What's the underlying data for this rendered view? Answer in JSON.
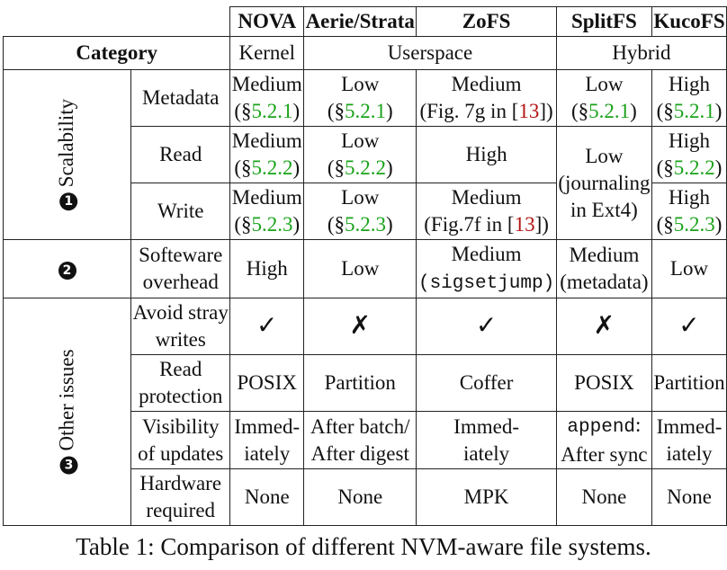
{
  "columns": {
    "nova": "NOVA",
    "aerie": "Aerie/Strata",
    "zofs": "ZoFS",
    "splitfs": "SplitFS",
    "kucofs": "KucoFS"
  },
  "category": {
    "label": "Category",
    "kernel": "Kernel",
    "userspace": "Userspace",
    "hybrid": "Hybrid"
  },
  "groups": {
    "scalability": {
      "num": "1",
      "label": "Scalability"
    },
    "overhead": {
      "num": "2"
    },
    "other": {
      "num": "3",
      "label": "Other issues"
    }
  },
  "rows": {
    "metadata": {
      "label": "Metadata",
      "nova": {
        "text": "Medium",
        "pre": "(§",
        "ref": "5.2.1",
        "post": ")"
      },
      "aerie": {
        "text": "Low",
        "pre": "(§",
        "ref": "5.2.1",
        "post": ")"
      },
      "zofs": {
        "text": "Medium",
        "pre": "(Fig. 7g in [",
        "ref": "13",
        "post": "])"
      },
      "splitfs": {
        "text": "Low",
        "pre": "(§",
        "ref": "5.2.1",
        "post": ")"
      },
      "kucofs": {
        "text": "High",
        "pre": "(§",
        "ref": "5.2.1",
        "post": ")"
      }
    },
    "read": {
      "label": "Read",
      "nova": {
        "text": "Medium",
        "pre": "(§",
        "ref": "5.2.2",
        "post": ")"
      },
      "aerie": {
        "text": "Low",
        "pre": "(§",
        "ref": "5.2.2",
        "post": ")"
      },
      "zofs": {
        "text": "High"
      },
      "splitfs": {
        "l1": "Low",
        "l2": "(journaling",
        "l3": "in Ext4)"
      },
      "kucofs": {
        "text": "High",
        "pre": "(§",
        "ref": "5.2.2",
        "post": ")"
      }
    },
    "write": {
      "label": "Write",
      "nova": {
        "text": "Medium",
        "pre": "(§",
        "ref": "5.2.3",
        "post": ")"
      },
      "aerie": {
        "text": "Low",
        "pre": "(§",
        "ref": "5.2.3",
        "post": ")"
      },
      "zofs": {
        "text": "Medium",
        "pre": "(Fig.7f in [",
        "ref": "13",
        "post": "])"
      },
      "kucofs": {
        "text": "High",
        "pre": "(§",
        "ref": "5.2.3",
        "post": ")"
      }
    },
    "overhead": {
      "label1": "Softeware",
      "label2": "overhead",
      "nova": "High",
      "aerie": "Low",
      "zofs1": "Medium",
      "zofs2": "(sigsetjump)",
      "splitfs1": "Medium",
      "splitfs2": "(metadata)",
      "kucofs": "Low"
    },
    "stray": {
      "label1": "Avoid stray",
      "label2": "writes",
      "nova": "✓",
      "aerie": "✗",
      "zofs": "✓",
      "splitfs": "✗",
      "kucofs": "✓"
    },
    "readprot": {
      "label1": "Read",
      "label2": "protection",
      "nova": "POSIX",
      "aerie": "Partition",
      "zofs": "Coffer",
      "splitfs": "POSIX",
      "kucofs": "Partition"
    },
    "visibility": {
      "label1": "Visibility",
      "label2": "of updates",
      "nova1": "Immed-",
      "nova2": "iately",
      "aerie1": "After batch/",
      "aerie2": "After digest",
      "zofs1": "Immed-",
      "zofs2": "iately",
      "splitfs1a": "append",
      "splitfs1b": ":",
      "splitfs2": "After sync",
      "kucofs1": "Immed-",
      "kucofs2": "iately"
    },
    "hardware": {
      "label1": "Hardware",
      "label2": "required",
      "nova": "None",
      "aerie": "None",
      "zofs": "MPK",
      "splitfs": "None",
      "kucofs": "None"
    }
  },
  "caption": "Table 1: Comparison of different NVM-aware file systems."
}
